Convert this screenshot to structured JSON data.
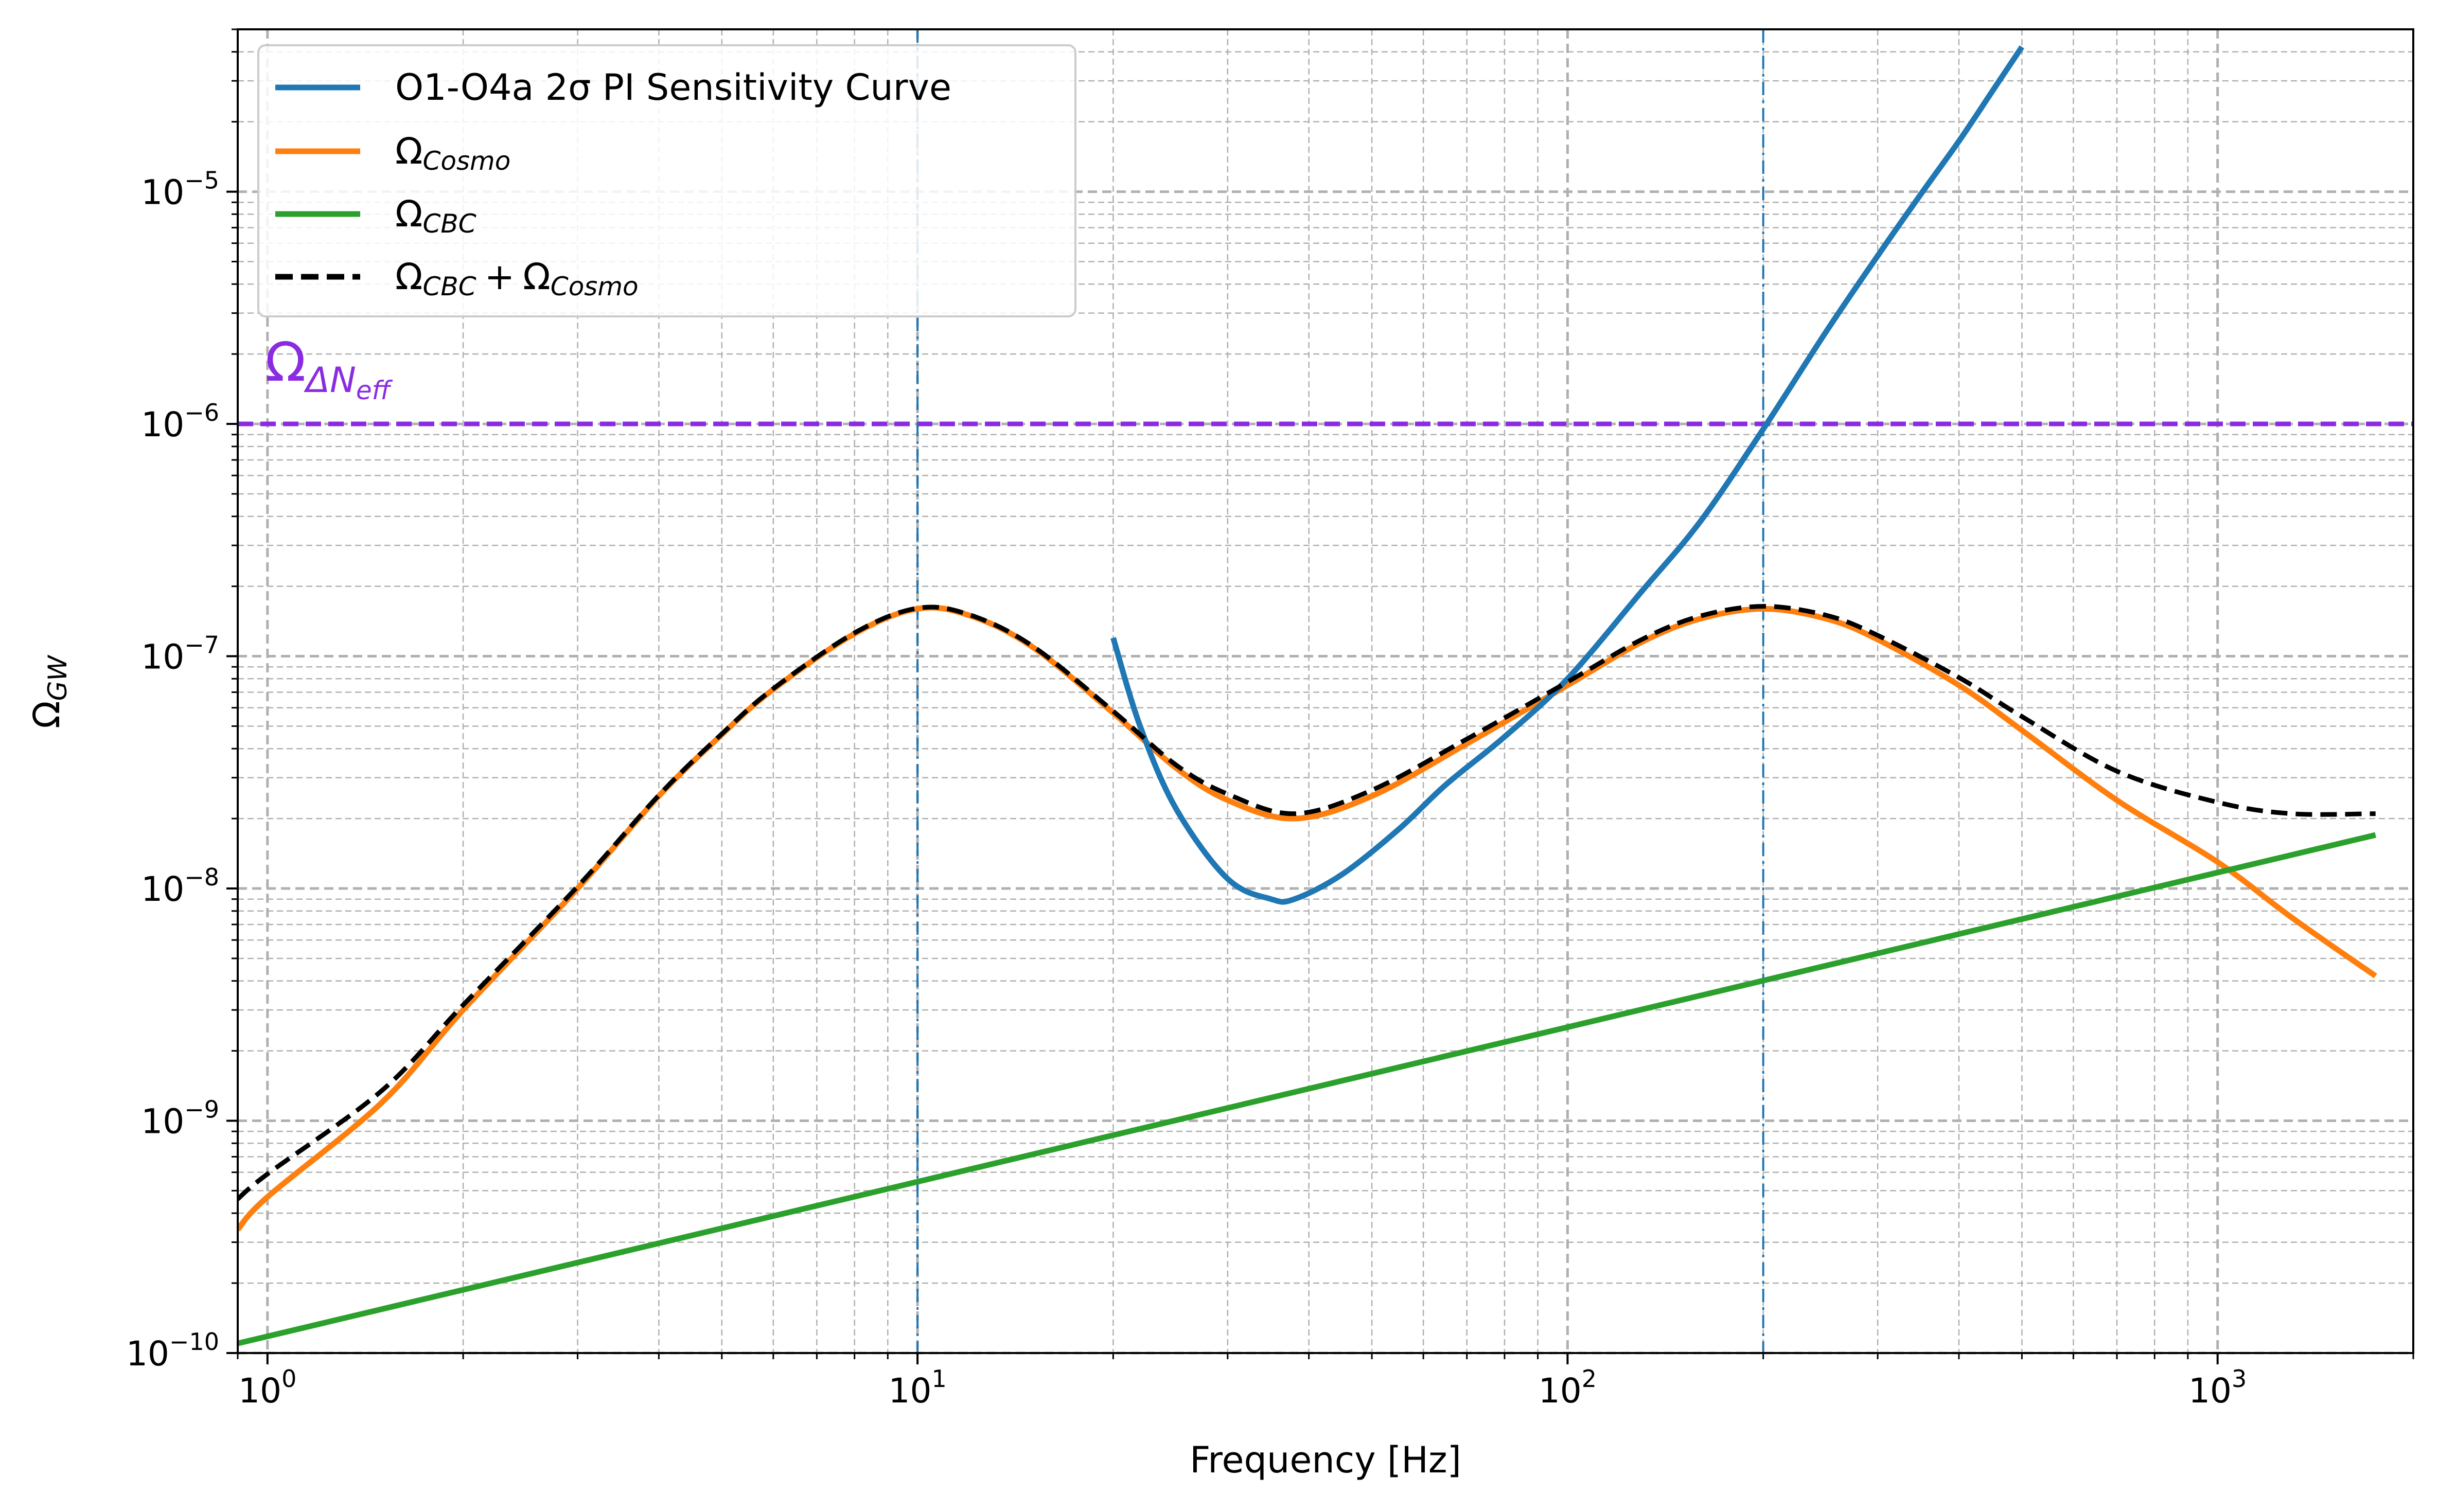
{
  "chart_data": {
    "type": "line",
    "xscale": "log",
    "yscale": "log",
    "xlabel": "Frequency [Hz]",
    "ylabel": {
      "base": "Ω",
      "sub": "GW"
    },
    "xlim": [
      0.9,
      2000
    ],
    "ylim": [
      1e-10,
      5e-05
    ],
    "x_ticks": [
      {
        "value": 1,
        "base": "10",
        "exp": "0"
      },
      {
        "value": 10,
        "base": "10",
        "exp": "1"
      },
      {
        "value": 100,
        "base": "10",
        "exp": "2"
      },
      {
        "value": 1000,
        "base": "10",
        "exp": "3"
      }
    ],
    "y_ticks": [
      {
        "value": 1e-10,
        "base": "10",
        "exp": "−10"
      },
      {
        "value": 1e-09,
        "base": "10",
        "exp": "−9"
      },
      {
        "value": 1e-08,
        "base": "10",
        "exp": "−8"
      },
      {
        "value": 1e-07,
        "base": "10",
        "exp": "−7"
      },
      {
        "value": 1e-06,
        "base": "10",
        "exp": "−6"
      },
      {
        "value": 1e-05,
        "base": "10",
        "exp": "−5"
      }
    ],
    "grid": true,
    "legend_position": "top-left",
    "series": [
      {
        "name": "O1-O4a 2σ PI Sensitivity Curve",
        "label": {
          "text": "O1-O4a 2σ PI Sensitivity Curve"
        },
        "color": "#1f77b4",
        "style": "solid",
        "x": [
          20,
          22,
          25,
          30,
          35,
          38,
          45,
          55,
          65,
          80,
          100,
          130,
          160,
          200,
          250,
          300,
          350,
          400,
          450,
          500
        ],
        "y": [
          1.2e-07,
          5e-08,
          2.2e-08,
          1.1e-08,
          9e-09,
          9e-09,
          1.15e-08,
          1.8e-08,
          2.8e-08,
          4.5e-08,
          8e-08,
          1.9e-07,
          3.8e-07,
          9.5e-07,
          2.5e-06,
          5.3e-06,
          9.8e-06,
          1.65e-05,
          2.7e-05,
          4.2e-05
        ]
      },
      {
        "name": "Ω_Cosmo",
        "label": {
          "base": "Ω",
          "sub": "Cosmo"
        },
        "color": "#ff7f0e",
        "style": "solid",
        "x": [
          0.9,
          1,
          1.5,
          2,
          3,
          4,
          5,
          6,
          8,
          10,
          12,
          15,
          20,
          25,
          30,
          38,
          50,
          70,
          100,
          130,
          160,
          200,
          250,
          300,
          400,
          500,
          700,
          1000,
          1300,
          1750
        ],
        "y": [
          3.4e-10,
          4.7e-10,
          1.2e-09,
          3e-09,
          1e-08,
          2.5e-08,
          4.6e-08,
          7.2e-08,
          1.25e-07,
          1.6e-07,
          1.5e-07,
          1.1e-07,
          5.7e-08,
          3.3e-08,
          2.4e-08,
          2e-08,
          2.5e-08,
          4.2e-08,
          7.5e-08,
          1.15e-07,
          1.45e-07,
          1.6e-07,
          1.45e-07,
          1.18e-07,
          7.5e-08,
          4.8e-08,
          2.4e-08,
          1.3e-08,
          7.5e-09,
          4.2e-09
        ]
      },
      {
        "name": "Ω_CBC",
        "label": {
          "base": "Ω",
          "sub": "CBC"
        },
        "color": "#2ca02c",
        "style": "solid",
        "x": [
          0.9,
          1750
        ],
        "y": [
          1.1e-10,
          1.7e-08
        ]
      },
      {
        "name": "Ω_CBC + Ω_Cosmo",
        "label": {
          "base": "Ω",
          "sub": "CBC",
          "plus": "+",
          "base2": "Ω",
          "sub2": "Cosmo"
        },
        "color": "#000000",
        "style": "dashed",
        "x": [
          0.9,
          1,
          1.5,
          2,
          3,
          4,
          5,
          6,
          8,
          10,
          12,
          15,
          20,
          25,
          30,
          38,
          50,
          70,
          100,
          130,
          160,
          200,
          250,
          300,
          400,
          500,
          700,
          1000,
          1300,
          1750
        ],
        "y": [
          4.6e-10,
          5.9e-10,
          1.35e-09,
          3.15e-09,
          1.02e-08,
          2.52e-08,
          4.63e-08,
          7.25e-08,
          1.26e-07,
          1.61e-07,
          1.51e-07,
          1.11e-07,
          5.8e-08,
          3.4e-08,
          2.55e-08,
          2.1e-08,
          2.65e-08,
          4.4e-08,
          7.75e-08,
          1.18e-07,
          1.49e-07,
          1.64e-07,
          1.5e-07,
          1.23e-07,
          8.1e-08,
          5.5e-08,
          3.2e-08,
          2.35e-08,
          2.1e-08,
          2.1e-08
        ]
      }
    ],
    "reference_lines": [
      {
        "orientation": "horizontal",
        "value": 1e-06,
        "color": "#8a2be2",
        "style": "dashed",
        "label": {
          "base": "Ω",
          "sub": "ΔN",
          "subsub": "eff"
        }
      },
      {
        "orientation": "vertical",
        "value": 10,
        "color": "#1f77b4",
        "style": "dashdot"
      },
      {
        "orientation": "vertical",
        "value": 200,
        "color": "#1f77b4",
        "style": "dashdot"
      }
    ]
  }
}
